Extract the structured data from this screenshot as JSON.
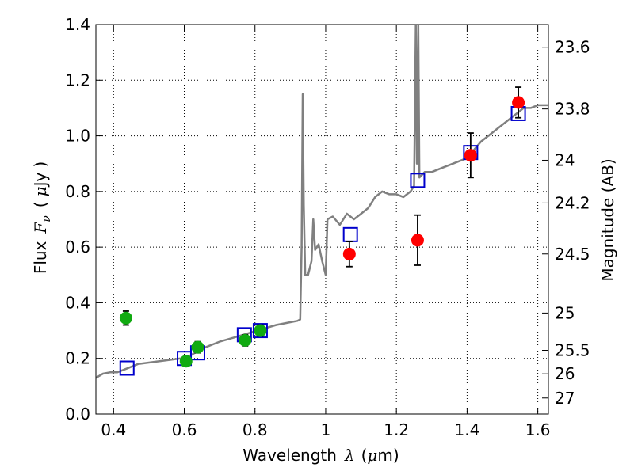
{
  "chart_data": {
    "type": "scatter",
    "title": "",
    "xlabel": "Wavelength  λ (μm)",
    "ylabel": "Flux  F_ν  ( μJy )",
    "ylabel_parts": {
      "prefix": "Flux",
      "symbol": "F",
      "subscript": "ν",
      "unit_open": "(",
      "unit_mu": "μ",
      "unit": "Jy",
      "unit_close": ")"
    },
    "xlabel_parts": {
      "prefix": "Wavelength",
      "symbol": "λ",
      "unit_open": "(",
      "unit_mu": "μ",
      "unit": "m",
      "unit_close": ")"
    },
    "right_ylabel": "Magnitude (AB)",
    "xlim": [
      0.35,
      1.63
    ],
    "ylim": [
      0.0,
      1.4
    ],
    "grid": true,
    "x_ticks": [
      {
        "value": 0.4,
        "label": "0.4"
      },
      {
        "value": 0.6,
        "label": "0.6"
      },
      {
        "value": 0.8,
        "label": "0.8"
      },
      {
        "value": 1.0,
        "label": "1"
      },
      {
        "value": 1.2,
        "label": "1.2"
      },
      {
        "value": 1.4,
        "label": "1.4"
      },
      {
        "value": 1.6,
        "label": "1.6"
      }
    ],
    "y_ticks": [
      {
        "value": 0.0,
        "label": "0.0"
      },
      {
        "value": 0.2,
        "label": "0.2"
      },
      {
        "value": 0.4,
        "label": "0.4"
      },
      {
        "value": 0.6,
        "label": "0.6"
      },
      {
        "value": 0.8,
        "label": "0.8"
      },
      {
        "value": 1.0,
        "label": "1.0"
      },
      {
        "value": 1.2,
        "label": "1.2"
      },
      {
        "value": 1.4,
        "label": "1.4"
      }
    ],
    "right_ticks": [
      {
        "label": "23.6",
        "mag": 23.6
      },
      {
        "label": "23.8",
        "mag": 23.8
      },
      {
        "label": "24",
        "mag": 24.0
      },
      {
        "label": "24.2",
        "mag": 24.2
      },
      {
        "label": "24.5",
        "mag": 24.5
      },
      {
        "label": "25",
        "mag": 25.0
      },
      {
        "label": "25.5",
        "mag": 25.5
      },
      {
        "label": "26",
        "mag": 26.0
      },
      {
        "label": "27",
        "mag": 27.0
      }
    ],
    "colors": {
      "model": "#808080",
      "model_points": "#0000cc",
      "optical_points": "#11aa11",
      "nir_points": "#ff0000",
      "errorbar": "#000000"
    },
    "series": [
      {
        "kind": "line",
        "color": "#808080",
        "points": [
          [
            0.35,
            0.13
          ],
          [
            0.37,
            0.145
          ],
          [
            0.39,
            0.15
          ],
          [
            0.41,
            0.15
          ],
          [
            0.43,
            0.16
          ],
          [
            0.45,
            0.17
          ],
          [
            0.47,
            0.18
          ],
          [
            0.5,
            0.185
          ],
          [
            0.53,
            0.19
          ],
          [
            0.56,
            0.195
          ],
          [
            0.59,
            0.2
          ],
          [
            0.61,
            0.205
          ],
          [
            0.63,
            0.22
          ],
          [
            0.66,
            0.24
          ],
          [
            0.7,
            0.26
          ],
          [
            0.74,
            0.275
          ],
          [
            0.78,
            0.29
          ],
          [
            0.82,
            0.305
          ],
          [
            0.86,
            0.32
          ],
          [
            0.9,
            0.33
          ],
          [
            0.92,
            0.335
          ],
          [
            0.928,
            0.34
          ],
          [
            0.932,
            0.6
          ],
          [
            0.935,
            1.15
          ],
          [
            0.938,
            0.75
          ],
          [
            0.942,
            0.5
          ],
          [
            0.95,
            0.5
          ],
          [
            0.96,
            0.55
          ],
          [
            0.965,
            0.7
          ],
          [
            0.97,
            0.59
          ],
          [
            0.98,
            0.61
          ],
          [
            0.99,
            0.55
          ],
          [
            1.0,
            0.5
          ],
          [
            1.005,
            0.7
          ],
          [
            1.02,
            0.71
          ],
          [
            1.04,
            0.68
          ],
          [
            1.06,
            0.72
          ],
          [
            1.08,
            0.7
          ],
          [
            1.1,
            0.72
          ],
          [
            1.12,
            0.74
          ],
          [
            1.14,
            0.78
          ],
          [
            1.16,
            0.8
          ],
          [
            1.18,
            0.79
          ],
          [
            1.2,
            0.79
          ],
          [
            1.22,
            0.78
          ],
          [
            1.24,
            0.8
          ],
          [
            1.25,
            0.82
          ],
          [
            1.255,
            1.4
          ],
          [
            1.258,
            0.9
          ],
          [
            1.262,
            1.4
          ],
          [
            1.265,
            0.85
          ],
          [
            1.28,
            0.87
          ],
          [
            1.3,
            0.87
          ],
          [
            1.32,
            0.88
          ],
          [
            1.34,
            0.89
          ],
          [
            1.36,
            0.9
          ],
          [
            1.38,
            0.91
          ],
          [
            1.4,
            0.92
          ],
          [
            1.42,
            0.95
          ],
          [
            1.44,
            0.98
          ],
          [
            1.46,
            1.0
          ],
          [
            1.48,
            1.02
          ],
          [
            1.5,
            1.04
          ],
          [
            1.52,
            1.06
          ],
          [
            1.54,
            1.08
          ],
          [
            1.56,
            1.1
          ],
          [
            1.58,
            1.1
          ],
          [
            1.6,
            1.11
          ],
          [
            1.63,
            1.11
          ]
        ]
      },
      {
        "kind": "squares",
        "color": "#0000cc",
        "points": [
          [
            0.438,
            0.165
          ],
          [
            0.6,
            0.2
          ],
          [
            0.638,
            0.22
          ],
          [
            0.77,
            0.285
          ],
          [
            0.815,
            0.3
          ],
          [
            1.07,
            0.645
          ],
          [
            1.26,
            0.84
          ],
          [
            1.41,
            0.94
          ],
          [
            1.545,
            1.08
          ]
        ]
      },
      {
        "kind": "errorbar",
        "color": "#11aa11",
        "points": [
          [
            0.435,
            0.345,
            0.025
          ],
          [
            0.605,
            0.19,
            0.015
          ],
          [
            0.638,
            0.24,
            0.02
          ],
          [
            0.772,
            0.265,
            0.02
          ],
          [
            0.815,
            0.3,
            0.02
          ]
        ]
      },
      {
        "kind": "errorbar",
        "color": "#ff0000",
        "points": [
          [
            1.067,
            0.575,
            0.045
          ],
          [
            1.26,
            0.625,
            0.09
          ],
          [
            1.41,
            0.93,
            0.08
          ],
          [
            1.545,
            1.12,
            0.055
          ]
        ]
      }
    ]
  }
}
